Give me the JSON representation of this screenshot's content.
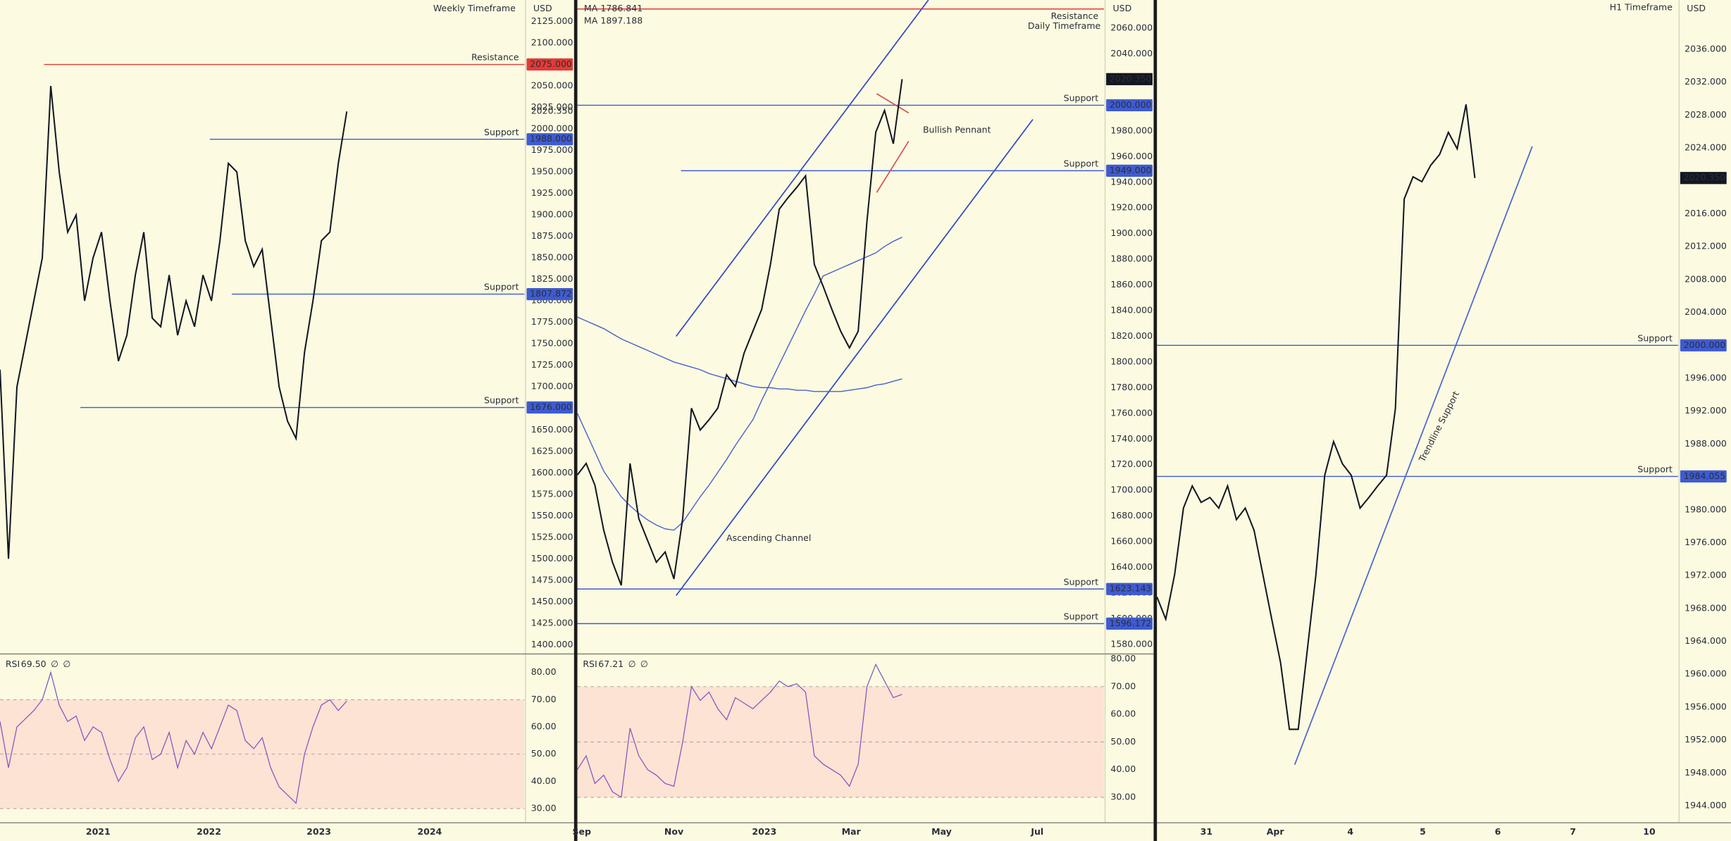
{
  "chart_data": [
    {
      "type": "line",
      "title": "Weekly Timeframe",
      "currency": "USD",
      "color": "#131722",
      "values": [
        1720,
        1500,
        1700,
        1750,
        1800,
        1850,
        2050,
        1950,
        1880,
        1900,
        1800,
        1850,
        1880,
        1800,
        1730,
        1760,
        1830,
        1880,
        1780,
        1770,
        1830,
        1760,
        1800,
        1770,
        1830,
        1800,
        1870,
        1960,
        1950,
        1870,
        1840,
        1860,
        1780,
        1700,
        1660,
        1640,
        1740,
        1800,
        1870,
        1880,
        1960,
        2020.35
      ],
      "xlim": [
        0,
        62
      ],
      "xticks": [
        {
          "value": 11.6,
          "label": "2021"
        },
        {
          "value": 24.7,
          "label": "2022"
        },
        {
          "value": 37.7,
          "label": "2023"
        },
        {
          "value": 50.8,
          "label": "2024"
        }
      ],
      "ylim": [
        1390,
        2150
      ],
      "yticks": [
        {
          "value": 1400,
          "label": "1400.000"
        },
        {
          "value": 1425,
          "label": "1425.000"
        },
        {
          "value": 1450,
          "label": "1450.000"
        },
        {
          "value": 1475,
          "label": "1475.000"
        },
        {
          "value": 1500,
          "label": "1500.000"
        },
        {
          "value": 1525,
          "label": "1525.000"
        },
        {
          "value": 1550,
          "label": "1550.000"
        },
        {
          "value": 1575,
          "label": "1575.000"
        },
        {
          "value": 1600,
          "label": "1600.000"
        },
        {
          "value": 1625,
          "label": "1625.000"
        },
        {
          "value": 1650,
          "label": "1650.000"
        },
        {
          "value": 1675,
          "label": "1675.000"
        },
        {
          "value": 1700,
          "label": "1700.000"
        },
        {
          "value": 1725,
          "label": "1725.000"
        },
        {
          "value": 1750,
          "label": "1750.000"
        },
        {
          "value": 1775,
          "label": "1775.000"
        },
        {
          "value": 1800,
          "label": "1800.000"
        },
        {
          "value": 1825,
          "label": "1825.000"
        },
        {
          "value": 1850,
          "label": "1850.000"
        },
        {
          "value": 1875,
          "label": "1875.000"
        },
        {
          "value": 1900,
          "label": "1900.000"
        },
        {
          "value": 1925,
          "label": "1925.000"
        },
        {
          "value": 1950,
          "label": "1950.000"
        },
        {
          "value": 1975,
          "label": "1975.000"
        },
        {
          "value": 2000,
          "label": "2000.000"
        },
        {
          "value": 2025,
          "label": "2025.000"
        },
        {
          "value": 2050,
          "label": "2050.000"
        },
        {
          "value": 2075,
          "label": "2075.000"
        },
        {
          "value": 2100,
          "label": "2100.000"
        },
        {
          "value": 2125,
          "label": "2125.000"
        }
      ],
      "levels": [
        {
          "name": "Resistance",
          "value": 2075,
          "label": "2075.000",
          "x0": 5.2,
          "color": "#e53935"
        },
        {
          "name": "Support",
          "value": 1988,
          "label": "1988.000",
          "x0": 24.8,
          "color": "#3f5bd1"
        },
        {
          "name": "Support",
          "value": 1807.872,
          "label": "1807.872",
          "x0": 27.4,
          "color": "#3f5bd1"
        },
        {
          "name": "Support",
          "value": 1676,
          "label": "1676.000",
          "x0": 9.5,
          "color": "#3f5bd1"
        }
      ],
      "last_price": {
        "value": 2020.35,
        "label": "2020.350",
        "style": "plain"
      }
    },
    {
      "type": "line",
      "title": "RSI",
      "reading": "69.50",
      "flags": [
        "∅",
        "∅"
      ],
      "color": "#7e57c2",
      "values": [
        62,
        45,
        60,
        63,
        66,
        70,
        80,
        68,
        62,
        64,
        55,
        60,
        58,
        48,
        40,
        45,
        56,
        60,
        48,
        50,
        58,
        45,
        55,
        50,
        58,
        52,
        60,
        68,
        66,
        55,
        52,
        56,
        45,
        38,
        35,
        32,
        50,
        60,
        68,
        70,
        66,
        69.5
      ],
      "ylim": [
        25,
        87
      ],
      "yticks": [
        {
          "value": 30,
          "label": "30.00"
        },
        {
          "value": 40,
          "label": "40.00"
        },
        {
          "value": 50,
          "label": "50.00"
        },
        {
          "value": 60,
          "label": "60.00"
        },
        {
          "value": 70,
          "label": "70.00"
        },
        {
          "value": 80,
          "label": "80.00"
        }
      ],
      "band": [
        30,
        70
      ],
      "guides": [
        30,
        50,
        70
      ]
    },
    {
      "type": "line",
      "title": "Daily Timeframe",
      "currency": "USD",
      "color": "#131722",
      "values": [
        1712,
        1721,
        1704,
        1669,
        1644,
        1626,
        1721,
        1678,
        1661,
        1644,
        1652,
        1631,
        1678,
        1764,
        1747,
        1755,
        1764,
        1790,
        1781,
        1807,
        1824,
        1841,
        1876,
        1919,
        1928,
        1936,
        1945,
        1876,
        1859,
        1841,
        1824,
        1811,
        1824,
        1910,
        1979,
        1996,
        1970,
        2020.35
      ],
      "series": [
        {
          "name": "MA",
          "color": "#4a5fd0",
          "values": [
            1835,
            1832,
            1829,
            1826,
            1822,
            1818,
            1815,
            1812,
            1809,
            1806,
            1803,
            1800,
            1798,
            1796,
            1794,
            1791,
            1789,
            1787,
            1785,
            1783,
            1781,
            1780,
            1780,
            1779,
            1779,
            1778,
            1778,
            1777,
            1777,
            1777,
            1777,
            1778,
            1779,
            1780,
            1782,
            1783,
            1785,
            1786.841
          ]
        },
        {
          "name": "MA",
          "color": "#4a5fd0",
          "values": [
            1760,
            1745,
            1730,
            1715,
            1705,
            1695,
            1688,
            1682,
            1677,
            1673,
            1670,
            1669,
            1675,
            1685,
            1695,
            1704,
            1714,
            1724,
            1735,
            1745,
            1755,
            1770,
            1784,
            1798,
            1812,
            1826,
            1840,
            1853,
            1867,
            1870,
            1873,
            1876,
            1879,
            1882,
            1885,
            1890,
            1894,
            1897.188
          ]
        }
      ],
      "xlim": [
        0,
        60
      ],
      "xticks": [
        {
          "value": 0.5,
          "label": "Sep"
        },
        {
          "value": 11.0,
          "label": "Nov"
        },
        {
          "value": 21.3,
          "label": "2023"
        },
        {
          "value": 31.2,
          "label": "Mar"
        },
        {
          "value": 41.5,
          "label": "May"
        },
        {
          "value": 52.4,
          "label": "Jul"
        }
      ],
      "ylim": [
        1573,
        2082
      ],
      "yticks": [
        {
          "value": 1580,
          "label": "1580.000"
        },
        {
          "value": 1600,
          "label": "1600.000"
        },
        {
          "value": 1620,
          "label": "1620.000"
        },
        {
          "value": 1640,
          "label": "1640.000"
        },
        {
          "value": 1660,
          "label": "1660.000"
        },
        {
          "value": 1680,
          "label": "1680.000"
        },
        {
          "value": 1700,
          "label": "1700.000"
        },
        {
          "value": 1720,
          "label": "1720.000"
        },
        {
          "value": 1740,
          "label": "1740.000"
        },
        {
          "value": 1760,
          "label": "1760.000"
        },
        {
          "value": 1780,
          "label": "1780.000"
        },
        {
          "value": 1800,
          "label": "1800.000"
        },
        {
          "value": 1820,
          "label": "1820.000"
        },
        {
          "value": 1840,
          "label": "1840.000"
        },
        {
          "value": 1860,
          "label": "1860.000"
        },
        {
          "value": 1880,
          "label": "1880.000"
        },
        {
          "value": 1900,
          "label": "1900.000"
        },
        {
          "value": 1920,
          "label": "1920.000"
        },
        {
          "value": 1940,
          "label": "1940.000"
        },
        {
          "value": 1960,
          "label": "1960.000"
        },
        {
          "value": 1980,
          "label": "1980.000"
        },
        {
          "value": 2000,
          "label": "2000.000"
        },
        {
          "value": 2020,
          "label": "2020.000"
        },
        {
          "value": 2040,
          "label": "2040.000"
        },
        {
          "value": 2060,
          "label": "2060.000"
        }
      ],
      "levels": [
        {
          "name": "Resistance",
          "value": 2075,
          "x0": 0,
          "color": "#e53935"
        },
        {
          "name": "Support",
          "value": 2000,
          "label": "2000.000",
          "x0": 0,
          "color": "#3f5bd1"
        },
        {
          "name": "Support",
          "value": 1949,
          "label": "1949.000",
          "x0": 11.8,
          "color": "#3f5bd1"
        },
        {
          "name": "Support",
          "value": 1623.143,
          "label": "1623.143",
          "x0": 0,
          "color": "#3f5bd1"
        },
        {
          "name": "Support",
          "value": 1596.172,
          "label": "1596.172",
          "x0": 0,
          "color": "#3f5bd1"
        }
      ],
      "lines": [
        {
          "label": "Ascending Channel",
          "color": "#3047c9",
          "parts": [
            {
              "x": [
                11.25,
                40
              ],
              "y": [
                1820,
                2082
              ]
            },
            {
              "x": [
                11.25,
                51.9
              ],
              "y": [
                1618,
                1989
              ]
            }
          ]
        },
        {
          "label": "Bullish Pennant",
          "color": "#d35454",
          "parts": [
            {
              "x": [
                34.1,
                37.75
              ],
              "y": [
                2009,
                1994
              ]
            },
            {
              "x": [
                34.1,
                37.75
              ],
              "y": [
                1932,
                1972
              ]
            }
          ]
        }
      ],
      "last_price": {
        "value": 2020.35,
        "label": "2020.350",
        "style": "badge"
      }
    },
    {
      "type": "line",
      "title": "RSI",
      "reading": "67.21",
      "flags": [
        "∅",
        "∅"
      ],
      "color": "#7e57c2",
      "values": [
        40,
        45,
        35,
        38,
        32,
        30,
        55,
        45,
        40,
        38,
        35,
        34,
        50,
        70,
        65,
        68,
        62,
        58,
        66,
        64,
        62,
        65,
        68,
        72,
        70,
        71,
        68,
        45,
        42,
        40,
        38,
        34,
        42,
        70,
        78,
        72,
        66,
        67.21
      ],
      "ylim": [
        21,
        82
      ],
      "yticks": [
        {
          "value": 30,
          "label": "30.00"
        },
        {
          "value": 40,
          "label": "40.00"
        },
        {
          "value": 50,
          "label": "50.00"
        },
        {
          "value": 60,
          "label": "60.00"
        },
        {
          "value": 70,
          "label": "70.00"
        },
        {
          "value": 80,
          "label": "80.00"
        }
      ],
      "band": [
        30,
        70
      ],
      "guides": [
        30,
        50,
        70
      ]
    },
    {
      "type": "line",
      "title": "H1 Timeframe",
      "currency": "USD",
      "color": "#131722",
      "values": [
        1969.4,
        1966.7,
        1972.1,
        1980.2,
        1982.9,
        1980.9,
        1981.5,
        1980.2,
        1982.9,
        1978.8,
        1980.2,
        1977.5,
        1972.1,
        1966.7,
        1961.4,
        1953.3,
        1953.3,
        1962.7,
        1972.1,
        1984.2,
        1988.3,
        1985.6,
        1984.2,
        1980.2,
        1981.5,
        1982.9,
        1984.2,
        1992.3,
        2017.8,
        2020.5,
        2019.9,
        2021.9,
        2023.2,
        2025.9,
        2023.9,
        2029.3,
        2020.35
      ],
      "xlim": [
        0,
        59
      ],
      "xticks": [
        {
          "value": 5.6,
          "label": "31"
        },
        {
          "value": 13.4,
          "label": "Apr"
        },
        {
          "value": 21.9,
          "label": "4"
        },
        {
          "value": 30.1,
          "label": "5"
        },
        {
          "value": 38.6,
          "label": "6"
        },
        {
          "value": 47.1,
          "label": "7"
        },
        {
          "value": 55.75,
          "label": "10"
        }
      ],
      "ylim": [
        1942,
        2042
      ],
      "yticks": [
        {
          "value": 1944,
          "label": "1944.000"
        },
        {
          "value": 1948,
          "label": "1948.000"
        },
        {
          "value": 1952,
          "label": "1952.000"
        },
        {
          "value": 1956,
          "label": "1956.000"
        },
        {
          "value": 1960,
          "label": "1960.000"
        },
        {
          "value": 1964,
          "label": "1964.000"
        },
        {
          "value": 1968,
          "label": "1968.000"
        },
        {
          "value": 1972,
          "label": "1972.000"
        },
        {
          "value": 1976,
          "label": "1976.000"
        },
        {
          "value": 1980,
          "label": "1980.000"
        },
        {
          "value": 1984,
          "label": "1984.000"
        },
        {
          "value": 1988,
          "label": "1988.000"
        },
        {
          "value": 1992,
          "label": "1992.000"
        },
        {
          "value": 1996,
          "label": "1996.000"
        },
        {
          "value": 2000,
          "label": "2000.000"
        },
        {
          "value": 2004,
          "label": "2004.000"
        },
        {
          "value": 2008,
          "label": "2008.000"
        },
        {
          "value": 2012,
          "label": "2012.000"
        },
        {
          "value": 2016,
          "label": "2016.000"
        },
        {
          "value": 2020,
          "label": "2020.000"
        },
        {
          "value": 2024,
          "label": "2024.000"
        },
        {
          "value": 2028,
          "label": "2028.000"
        },
        {
          "value": 2032,
          "label": "2032.000"
        },
        {
          "value": 2036,
          "label": "2036.000"
        }
      ],
      "levels": [
        {
          "name": "Support",
          "value": 2000,
          "label": "2000.000",
          "x0": 0,
          "color": "#3f5bd1"
        },
        {
          "name": "Support",
          "value": 1984.055,
          "label": "1984.055",
          "x0": 0,
          "color": "#3f5bd1"
        }
      ],
      "lines": [
        {
          "label": "Trendline Support",
          "color": "#4a63d6",
          "parts": [
            {
              "x": [
                15.6,
                42.5
              ],
              "y": [
                1949,
                2024.2
              ]
            }
          ]
        }
      ],
      "last_price": {
        "value": 2020.35,
        "label": "2020.350",
        "style": "badge"
      }
    }
  ]
}
